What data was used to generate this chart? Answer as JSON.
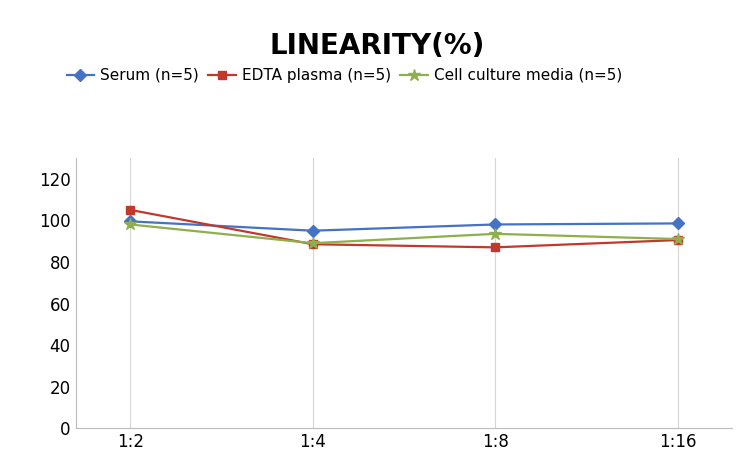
{
  "title": "LINEARITY(%)",
  "title_fontsize": 20,
  "title_fontweight": "bold",
  "x_labels": [
    "1:2",
    "1:4",
    "1:8",
    "1:16"
  ],
  "x_values": [
    0,
    1,
    2,
    3
  ],
  "series": [
    {
      "label": "Serum (n=5)",
      "values": [
        99.5,
        95.0,
        98.0,
        98.5
      ],
      "color": "#4472C4",
      "marker": "D",
      "markersize": 6
    },
    {
      "label": "EDTA plasma (n=5)",
      "values": [
        105.0,
        88.5,
        87.0,
        90.5
      ],
      "color": "#C0392B",
      "marker": "s",
      "markersize": 6
    },
    {
      "label": "Cell culture media (n=5)",
      "values": [
        98.0,
        89.0,
        93.5,
        91.0
      ],
      "color": "#8DB04C",
      "marker": "*",
      "markersize": 9
    }
  ],
  "ylim": [
    0,
    130
  ],
  "yticks": [
    0,
    20,
    40,
    60,
    80,
    100,
    120
  ],
  "background_color": "#FFFFFF",
  "grid_color": "#D5D5D5",
  "legend_fontsize": 11,
  "tick_fontsize": 12
}
